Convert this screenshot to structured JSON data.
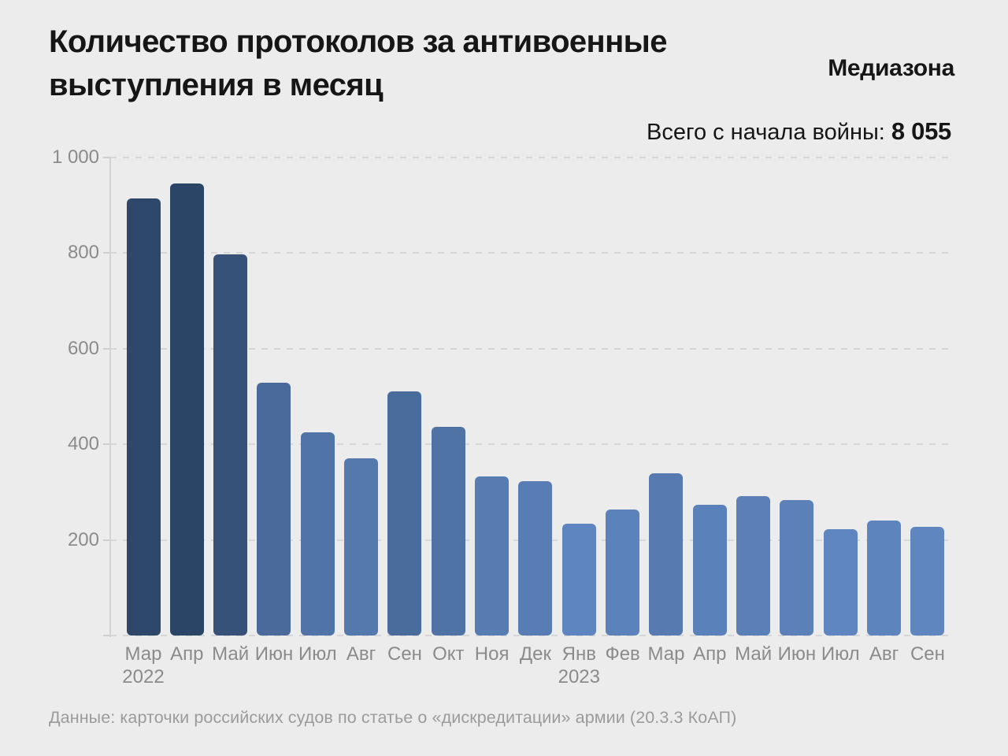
{
  "header": {
    "title_lines": [
      "Количество протоколов за антивоенные",
      "выступления в месяц"
    ],
    "brand": "Медиазона",
    "total_label": "Всего с начала войны: ",
    "total_value": "8 055"
  },
  "footer": {
    "source": "Данные: карточки российских судов по статье о «дискредитации» армии (20.3.3 КоАП)"
  },
  "colors": {
    "background": "#ececec",
    "text_dark": "#161616",
    "axis_label_gray": "#8b8b8b",
    "footer_gray": "#9b9b9b",
    "grid_gray": "#d6d6d6",
    "bar_dark": "#2b4566",
    "bar_light": "#5f86c0"
  },
  "chart_data": {
    "type": "bar",
    "title": "Количество протоколов за антивоенные выступления в месяц",
    "subtitle_total": "Всего с начала войны: 8 055",
    "categories": [
      "Мар",
      "Апр",
      "Май",
      "Июн",
      "Июл",
      "Авг",
      "Сен",
      "Окт",
      "Ноя",
      "Дек",
      "Янв",
      "Фев",
      "Мар",
      "Апр",
      "Май",
      "Июн",
      "Июл",
      "Авг",
      "Сен"
    ],
    "year_labels": [
      {
        "index": 0,
        "year": "2022"
      },
      {
        "index": 10,
        "year": "2023"
      }
    ],
    "values": [
      914,
      945,
      796,
      528,
      425,
      371,
      511,
      437,
      333,
      322,
      234,
      264,
      339,
      274,
      291,
      283,
      222,
      241,
      227
    ],
    "xlabel": "",
    "ylabel": "",
    "ylim": [
      0,
      1000
    ],
    "yticks": [
      0,
      200,
      400,
      600,
      800,
      1000
    ],
    "ytick_labels": [
      "",
      "200",
      "400",
      "600",
      "800",
      "1 000"
    ],
    "grid": "dashed horizontal, shown at all yticks including baseline",
    "legend": "none",
    "bar_color_scale": {
      "description": "bar fill interpolated by value: higher = darker",
      "domain": [
        222,
        945
      ],
      "light": "#5f86c0",
      "dark": "#2b4566"
    }
  }
}
